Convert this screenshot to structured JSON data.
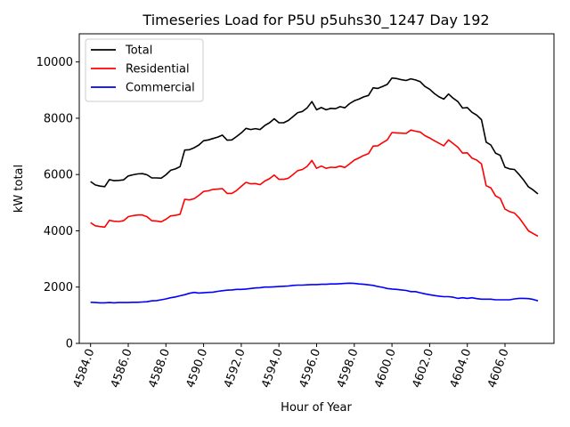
{
  "chart_data": {
    "type": "line",
    "title": "Timeseries Load for P5U p5uhs30_1247  Day 192",
    "xlabel": "Hour of Year",
    "ylabel": "kW total",
    "xlim": [
      4583.4,
      4608.6
    ],
    "ylim": [
      0,
      11000
    ],
    "xticks": [
      4584.0,
      4586.0,
      4588.0,
      4590.0,
      4592.0,
      4594.0,
      4596.0,
      4598.0,
      4600.0,
      4602.0,
      4604.0,
      4606.0
    ],
    "xtick_labels": [
      "4584.0",
      "4586.0",
      "4588.0",
      "4590.0",
      "4592.0",
      "4594.0",
      "4596.0",
      "4598.0",
      "4600.0",
      "4602.0",
      "4604.0",
      "4606.0"
    ],
    "yticks": [
      0,
      2000,
      4000,
      6000,
      8000,
      10000
    ],
    "ytick_labels": [
      "0",
      "2000",
      "4000",
      "6000",
      "8000",
      "10000"
    ],
    "legend_position": "top-left",
    "x": [
      4584.0,
      4584.25,
      4584.5,
      4584.75,
      4585.0,
      4585.25,
      4585.5,
      4585.75,
      4586.0,
      4586.25,
      4586.5,
      4586.75,
      4587.0,
      4587.25,
      4587.5,
      4587.75,
      4588.0,
      4588.25,
      4588.5,
      4588.75,
      4589.0,
      4589.25,
      4589.5,
      4589.75,
      4590.0,
      4590.25,
      4590.5,
      4590.75,
      4591.0,
      4591.25,
      4591.5,
      4591.75,
      4592.0,
      4592.25,
      4592.5,
      4592.75,
      4593.0,
      4593.25,
      4593.5,
      4593.75,
      4594.0,
      4594.25,
      4594.5,
      4594.75,
      4595.0,
      4595.25,
      4595.5,
      4595.75,
      4596.0,
      4596.25,
      4596.5,
      4596.75,
      4597.0,
      4597.25,
      4597.5,
      4597.75,
      4598.0,
      4598.25,
      4598.5,
      4598.75,
      4599.0,
      4599.25,
      4599.5,
      4599.75,
      4600.0,
      4600.25,
      4600.5,
      4600.75,
      4601.0,
      4601.25,
      4601.5,
      4601.75,
      4602.0,
      4602.25,
      4602.5,
      4602.75,
      4603.0,
      4603.25,
      4603.5,
      4603.75,
      4604.0,
      4604.25,
      4604.5,
      4604.75,
      4605.0,
      4605.25,
      4605.5,
      4605.75,
      4606.0,
      4606.25,
      4606.5,
      4606.75,
      4607.0,
      4607.25,
      4607.5,
      4607.75
    ],
    "series": [
      {
        "name": "Total",
        "color": "#000000",
        "values": [
          5750,
          5630,
          5590,
          5570,
          5820,
          5780,
          5790,
          5810,
          5950,
          5990,
          6020,
          6030,
          5990,
          5880,
          5880,
          5870,
          5990,
          6150,
          6200,
          6280,
          6870,
          6880,
          6950,
          7050,
          7200,
          7230,
          7280,
          7330,
          7400,
          7220,
          7230,
          7350,
          7480,
          7640,
          7600,
          7630,
          7600,
          7740,
          7840,
          7980,
          7840,
          7840,
          7920,
          8060,
          8200,
          8240,
          8370,
          8590,
          8300,
          8380,
          8300,
          8350,
          8340,
          8410,
          8370,
          8520,
          8620,
          8680,
          8760,
          8810,
          9080,
          9060,
          9130,
          9200,
          9430,
          9410,
          9370,
          9340,
          9400,
          9360,
          9300,
          9130,
          9030,
          8880,
          8760,
          8680,
          8860,
          8710,
          8590,
          8360,
          8380,
          8210,
          8110,
          7950,
          7150,
          7050,
          6760,
          6680,
          6260,
          6200,
          6180,
          6000,
          5790,
          5560,
          5450,
          5310
        ]
      },
      {
        "name": "Residential",
        "color": "#ff0000",
        "values": [
          4290,
          4180,
          4150,
          4130,
          4370,
          4340,
          4330,
          4360,
          4500,
          4540,
          4560,
          4560,
          4500,
          4360,
          4350,
          4320,
          4410,
          4530,
          4550,
          4590,
          5120,
          5100,
          5140,
          5260,
          5400,
          5420,
          5470,
          5480,
          5500,
          5330,
          5330,
          5430,
          5580,
          5720,
          5670,
          5680,
          5640,
          5770,
          5850,
          5980,
          5830,
          5830,
          5870,
          6000,
          6140,
          6180,
          6290,
          6500,
          6220,
          6300,
          6220,
          6260,
          6250,
          6300,
          6250,
          6380,
          6510,
          6590,
          6680,
          6740,
          7010,
          7020,
          7130,
          7230,
          7490,
          7480,
          7470,
          7460,
          7580,
          7540,
          7510,
          7380,
          7300,
          7200,
          7110,
          7020,
          7230,
          7100,
          6970,
          6760,
          6770,
          6580,
          6510,
          6380,
          5600,
          5530,
          5240,
          5150,
          4770,
          4680,
          4630,
          4460,
          4230,
          4000,
          3900,
          3810
        ]
      },
      {
        "name": "Commercial",
        "color": "#0000ff",
        "values": [
          1460,
          1450,
          1440,
          1440,
          1450,
          1440,
          1450,
          1450,
          1450,
          1460,
          1460,
          1470,
          1480,
          1510,
          1520,
          1550,
          1580,
          1620,
          1650,
          1690,
          1730,
          1780,
          1810,
          1790,
          1800,
          1810,
          1820,
          1850,
          1870,
          1890,
          1900,
          1920,
          1920,
          1930,
          1950,
          1970,
          1980,
          2000,
          2000,
          2010,
          2020,
          2030,
          2040,
          2060,
          2070,
          2070,
          2080,
          2090,
          2090,
          2100,
          2100,
          2110,
          2110,
          2120,
          2130,
          2140,
          2130,
          2110,
          2100,
          2080,
          2060,
          2020,
          1990,
          1950,
          1930,
          1920,
          1900,
          1880,
          1840,
          1840,
          1800,
          1760,
          1730,
          1700,
          1680,
          1660,
          1660,
          1640,
          1600,
          1620,
          1600,
          1620,
          1590,
          1570,
          1570,
          1570,
          1550,
          1550,
          1550,
          1550,
          1580,
          1600,
          1600,
          1590,
          1560,
          1510
        ]
      }
    ]
  }
}
